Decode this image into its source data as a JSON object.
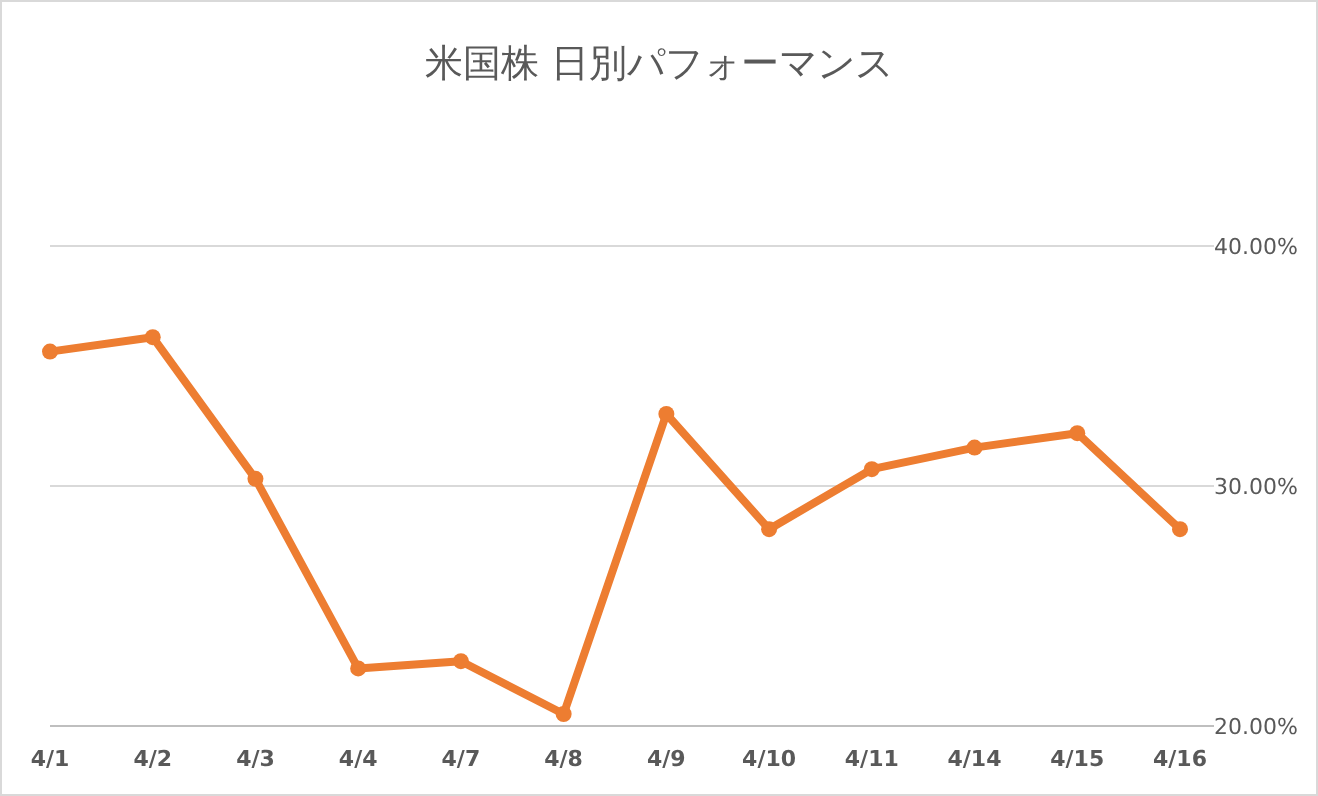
{
  "chart_data": {
    "type": "line",
    "title": "米国株 日別パフォーマンス",
    "categories": [
      "4/1",
      "4/2",
      "4/3",
      "4/4",
      "4/7",
      "4/8",
      "4/9",
      "4/10",
      "4/11",
      "4/14",
      "4/15",
      "4/16"
    ],
    "series": [
      {
        "color": "#ed7d31",
        "values": [
          35.6,
          36.2,
          30.3,
          22.4,
          22.7,
          20.5,
          33.0,
          28.2,
          30.7,
          31.6,
          32.2,
          28.2
        ]
      }
    ],
    "ylim": [
      20,
      40
    ],
    "yticks": [
      {
        "value": 20,
        "label": "20.00%"
      },
      {
        "value": 30,
        "label": "30.00%"
      },
      {
        "value": 40,
        "label": "40.00%"
      }
    ],
    "grid": "y",
    "marker": "circle"
  }
}
